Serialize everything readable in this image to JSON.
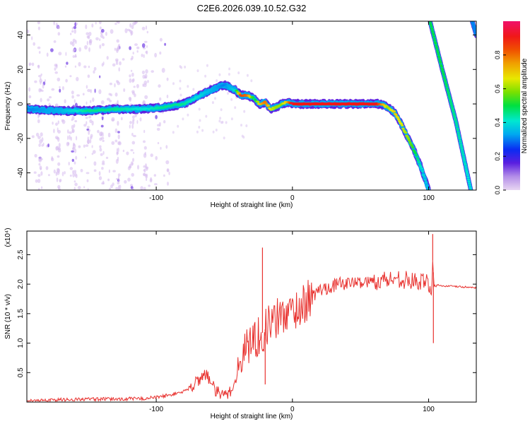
{
  "title": "C2E6.2026.039.10.52.G32",
  "chart_data": [
    {
      "type": "heatmap",
      "xlabel": "Height of straight line (km)",
      "ylabel": "Frequency (Hz)",
      "xlim": [
        -195,
        135
      ],
      "ylim": [
        -50,
        48
      ],
      "xticks": [
        -100,
        0,
        100
      ],
      "xtick_labels": [
        "-100",
        "0",
        "100"
      ],
      "yticks": [
        -40,
        -20,
        0,
        20,
        40
      ],
      "ytick_labels": [
        "-40",
        "-20",
        "0",
        "20",
        "40"
      ],
      "colorbar": {
        "label": "Normalized spectral amplitude",
        "range": [
          0.0,
          1.0
        ],
        "ticks": [
          0.0,
          0.2,
          0.4,
          0.6,
          0.8
        ],
        "tick_labels": [
          "0.0",
          "0.2",
          "0.4",
          "0.6",
          "0.8"
        ]
      },
      "main_track": [
        {
          "x": -195,
          "y": -3,
          "amp": 0.3
        },
        {
          "x": -170,
          "y": -4,
          "amp": 0.35
        },
        {
          "x": -150,
          "y": -4,
          "amp": 0.45
        },
        {
          "x": -130,
          "y": -3,
          "amp": 0.45
        },
        {
          "x": -110,
          "y": -3,
          "amp": 0.4
        },
        {
          "x": -95,
          "y": -2,
          "amp": 0.45
        },
        {
          "x": -80,
          "y": 0,
          "amp": 0.45
        },
        {
          "x": -70,
          "y": 4,
          "amp": 0.4
        },
        {
          "x": -60,
          "y": 8,
          "amp": 0.35
        },
        {
          "x": -50,
          "y": 11,
          "amp": 0.3
        },
        {
          "x": -42,
          "y": 8,
          "amp": 0.4
        },
        {
          "x": -38,
          "y": 5,
          "amp": 0.85
        },
        {
          "x": -33,
          "y": 5,
          "amp": 0.8
        },
        {
          "x": -28,
          "y": 3,
          "amp": 0.45
        },
        {
          "x": -24,
          "y": 0,
          "amp": 0.7
        },
        {
          "x": -20,
          "y": 1,
          "amp": 0.8
        },
        {
          "x": -16,
          "y": -3,
          "amp": 0.65
        },
        {
          "x": -12,
          "y": -2,
          "amp": 0.6
        },
        {
          "x": -8,
          "y": 0,
          "amp": 0.6
        },
        {
          "x": -4,
          "y": 1,
          "amp": 0.7
        },
        {
          "x": 0,
          "y": 0,
          "amp": 0.95
        },
        {
          "x": 20,
          "y": 0,
          "amp": 1.0
        },
        {
          "x": 40,
          "y": 0,
          "amp": 1.0
        },
        {
          "x": 60,
          "y": 0,
          "amp": 0.95
        },
        {
          "x": 65,
          "y": 0,
          "amp": 0.8
        },
        {
          "x": 70,
          "y": -2,
          "amp": 0.6
        },
        {
          "x": 75,
          "y": -5,
          "amp": 0.7
        },
        {
          "x": 80,
          "y": -12,
          "amp": 0.65
        },
        {
          "x": 85,
          "y": -20,
          "amp": 0.6
        },
        {
          "x": 90,
          "y": -28,
          "amp": 0.5
        },
        {
          "x": 95,
          "y": -38,
          "amp": 0.4
        },
        {
          "x": 100,
          "y": -50,
          "amp": 0.35
        }
      ],
      "alias_track_1": [
        {
          "x": 101,
          "y": 48,
          "amp": 0.5
        },
        {
          "x": 110,
          "y": 20,
          "amp": 0.5
        },
        {
          "x": 120,
          "y": -10,
          "amp": 0.45
        },
        {
          "x": 131,
          "y": -50,
          "amp": 0.4
        }
      ],
      "alias_track_2": [
        {
          "x": 132,
          "y": 48,
          "amp": 0.3
        },
        {
          "x": 135,
          "y": 40,
          "amp": 0.3
        }
      ]
    },
    {
      "type": "line",
      "xlabel": "Height of straight line (km)",
      "ylabel": "SNR (10 * v/v)",
      "y_multiplier": "(x10⁴)",
      "xlim": [
        -195,
        135
      ],
      "ylim": [
        0,
        2.9
      ],
      "xticks": [
        -100,
        0,
        100
      ],
      "xtick_labels": [
        "-100",
        "0",
        "100"
      ],
      "yticks": [
        0.5,
        1.0,
        1.5,
        2.0,
        2.5
      ],
      "ytick_labels": [
        "0.5",
        "1.0",
        "1.5",
        "2.0",
        "2.5"
      ],
      "series": [
        {
          "name": "SNR",
          "color": "#e8322f",
          "x": [
            -195,
            -170,
            -150,
            -130,
            -110,
            -100,
            -90,
            -80,
            -75,
            -70,
            -66,
            -63,
            -60,
            -55,
            -50,
            -45,
            -41,
            -38,
            -35,
            -32,
            -29,
            -26,
            -23,
            -21,
            -18,
            -15,
            -12,
            -9,
            -6,
            -3,
            0,
            5,
            10,
            15,
            20,
            30,
            40,
            50,
            60,
            70,
            80,
            85,
            90,
            95,
            100,
            102,
            103,
            104,
            110,
            120,
            135
          ],
          "y": [
            0.02,
            0.04,
            0.05,
            0.05,
            0.06,
            0.08,
            0.12,
            0.18,
            0.25,
            0.35,
            0.45,
            0.5,
            0.3,
            0.15,
            0.1,
            0.2,
            0.4,
            0.7,
            0.9,
            1.0,
            1.05,
            1.1,
            1.15,
            1.2,
            1.3,
            1.35,
            1.4,
            1.45,
            1.5,
            1.5,
            1.55,
            1.6,
            1.7,
            1.8,
            1.9,
            1.98,
            2.02,
            2.03,
            2.05,
            2.08,
            2.1,
            2.05,
            2.05,
            2.02,
            2.05,
            1.8,
            2.4,
            2.0,
            1.97,
            1.96,
            1.94
          ],
          "spikes": [
            {
              "x": -22,
              "y": 2.62
            },
            {
              "x": -20,
              "y": 0.3
            },
            {
              "x": 103,
              "y": 2.85
            },
            {
              "x": 103.5,
              "y": 1.0
            }
          ]
        }
      ]
    }
  ]
}
